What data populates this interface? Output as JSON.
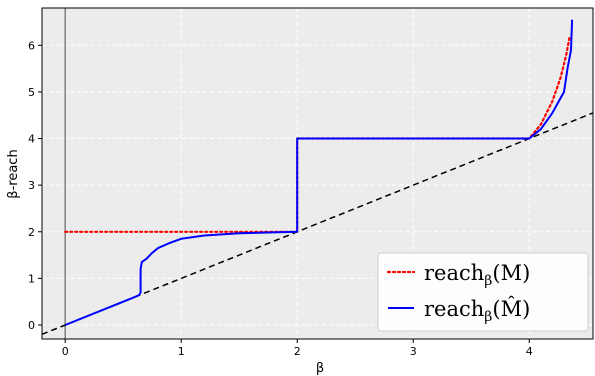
{
  "chart_data": {
    "type": "line",
    "title": "",
    "xlabel": "β",
    "ylabel": "β-reach",
    "xlim": [
      -0.2,
      4.55
    ],
    "ylim": [
      -0.3,
      6.8
    ],
    "xticks": [
      0,
      1,
      2,
      3,
      4
    ],
    "yticks": [
      0,
      1,
      2,
      3,
      4,
      5,
      6
    ],
    "grid": true,
    "legend_position": "bottom-right",
    "vertical_reference_line": {
      "x": 0,
      "color": "#808080"
    },
    "diagonal_reference_line": {
      "slope": 1,
      "intercept": 0,
      "style": "dashed",
      "color": "#000000"
    },
    "series": [
      {
        "name": "reach_β(M)",
        "legend_main": "reach",
        "legend_sub": "β",
        "legend_arg": "(M)",
        "color": "#ff0000",
        "style": "dotted",
        "points": [
          [
            0,
            2
          ],
          [
            2,
            2
          ],
          [
            2,
            4
          ],
          [
            4,
            4
          ],
          [
            4.1,
            4.3
          ],
          [
            4.2,
            4.8
          ],
          [
            4.27,
            5.3
          ],
          [
            4.32,
            5.8
          ],
          [
            4.35,
            6.2
          ]
        ]
      },
      {
        "name": "reach_β(M̂)",
        "legend_main": "reach",
        "legend_sub": "β",
        "legend_arg": "(M̂)",
        "color": "#0000ff",
        "style": "solid",
        "points": [
          [
            0,
            0
          ],
          [
            0.62,
            0.62
          ],
          [
            0.64,
            0.65
          ],
          [
            0.65,
            0.7
          ],
          [
            0.65,
            1.2
          ],
          [
            0.66,
            1.35
          ],
          [
            0.7,
            1.42
          ],
          [
            0.75,
            1.55
          ],
          [
            0.8,
            1.65
          ],
          [
            0.9,
            1.76
          ],
          [
            1.0,
            1.85
          ],
          [
            1.2,
            1.92
          ],
          [
            1.5,
            1.97
          ],
          [
            2,
            2
          ],
          [
            2,
            4
          ],
          [
            4,
            4
          ],
          [
            4.1,
            4.2
          ],
          [
            4.2,
            4.55
          ],
          [
            4.3,
            5.0
          ],
          [
            4.33,
            5.5
          ],
          [
            4.36,
            5.9
          ],
          [
            4.37,
            6.55
          ]
        ]
      }
    ]
  }
}
